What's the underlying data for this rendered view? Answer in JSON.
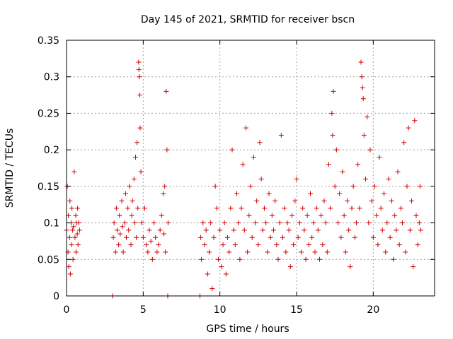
{
  "chart_data": {
    "type": "scatter",
    "title": "Day 145 of 2021, SRMTID for receiver bscn",
    "xlabel": "GPS time / hours",
    "ylabel": "SRMTID / TECUs",
    "xlim": [
      0,
      24
    ],
    "ylim": [
      0,
      0.35
    ],
    "xticks": [
      0,
      5,
      10,
      15,
      20
    ],
    "xtick_labels": [
      "0",
      "5",
      "10",
      "15",
      "20"
    ],
    "yticks": [
      0,
      0.05,
      0.1,
      0.15,
      0.2,
      0.25,
      0.3,
      0.35
    ],
    "ytick_labels": [
      "0",
      "0.05",
      "0.1",
      "0.15",
      "0.2",
      "0.25",
      "0.3",
      "0.35"
    ],
    "grid": true,
    "marker": "+",
    "color": "#d00000",
    "series": [
      {
        "name": "SRMTID",
        "points": [
          [
            0.0,
            0.09
          ],
          [
            0.05,
            0.15
          ],
          [
            0.1,
            0.06
          ],
          [
            0.12,
            0.11
          ],
          [
            0.15,
            0.04
          ],
          [
            0.2,
            0.08
          ],
          [
            0.22,
            0.13
          ],
          [
            0.25,
            0.03
          ],
          [
            0.3,
            0.1
          ],
          [
            0.32,
            0.07
          ],
          [
            0.35,
            0.12
          ],
          [
            0.4,
            0.09
          ],
          [
            0.42,
            0.05
          ],
          [
            0.45,
            0.095
          ],
          [
            0.5,
            0.17
          ],
          [
            0.55,
            0.08
          ],
          [
            0.6,
            0.11
          ],
          [
            0.62,
            0.06
          ],
          [
            0.65,
            0.1
          ],
          [
            0.7,
            0.085
          ],
          [
            0.72,
            0.12
          ],
          [
            0.75,
            0.07
          ],
          [
            0.8,
            0.1
          ],
          [
            0.85,
            0.09
          ],
          [
            3.0,
            0.0
          ],
          [
            3.05,
            0.08
          ],
          [
            3.1,
            0.1
          ],
          [
            3.2,
            0.06
          ],
          [
            3.25,
            0.12
          ],
          [
            3.3,
            0.09
          ],
          [
            3.4,
            0.07
          ],
          [
            3.45,
            0.11
          ],
          [
            3.5,
            0.085
          ],
          [
            3.6,
            0.13
          ],
          [
            3.65,
            0.095
          ],
          [
            3.7,
            0.06
          ],
          [
            3.8,
            0.1
          ],
          [
            3.85,
            0.14
          ],
          [
            3.9,
            0.08
          ],
          [
            4.0,
            0.12
          ],
          [
            4.05,
            0.09
          ],
          [
            4.1,
            0.15
          ],
          [
            4.2,
            0.07
          ],
          [
            4.25,
            0.11
          ],
          [
            4.3,
            0.13
          ],
          [
            4.4,
            0.16
          ],
          [
            4.45,
            0.1
          ],
          [
            4.5,
            0.19
          ],
          [
            4.55,
            0.08
          ],
          [
            4.6,
            0.21
          ],
          [
            4.65,
            0.12
          ],
          [
            4.7,
            0.32
          ],
          [
            4.72,
            0.31
          ],
          [
            4.75,
            0.3
          ],
          [
            4.78,
            0.275
          ],
          [
            4.8,
            0.23
          ],
          [
            4.85,
            0.17
          ],
          [
            4.9,
            0.1
          ],
          [
            5.0,
            0.08
          ],
          [
            5.1,
            0.12
          ],
          [
            5.2,
            0.07
          ],
          [
            5.3,
            0.06
          ],
          [
            5.4,
            0.09
          ],
          [
            5.5,
            0.075
          ],
          [
            5.6,
            0.05
          ],
          [
            5.7,
            0.1
          ],
          [
            5.8,
            0.08
          ],
          [
            5.9,
            0.06
          ],
          [
            6.0,
            0.07
          ],
          [
            6.1,
            0.09
          ],
          [
            6.2,
            0.11
          ],
          [
            6.3,
            0.14
          ],
          [
            6.35,
            0.085
          ],
          [
            6.4,
            0.15
          ],
          [
            6.45,
            0.06
          ],
          [
            6.5,
            0.28
          ],
          [
            6.55,
            0.2
          ],
          [
            6.6,
            0.0
          ],
          [
            6.62,
            0.1
          ],
          [
            8.7,
            0.0
          ],
          [
            8.75,
            0.08
          ],
          [
            8.8,
            0.05
          ],
          [
            8.9,
            0.1
          ],
          [
            9.0,
            0.07
          ],
          [
            9.1,
            0.09
          ],
          [
            9.2,
            0.03
          ],
          [
            9.3,
            0.06
          ],
          [
            9.4,
            0.1
          ],
          [
            9.5,
            0.01
          ],
          [
            9.6,
            0.08
          ],
          [
            9.7,
            0.15
          ],
          [
            9.8,
            0.12
          ],
          [
            9.9,
            0.05
          ],
          [
            10.0,
            0.09
          ],
          [
            10.1,
            0.04
          ],
          [
            10.2,
            0.07
          ],
          [
            10.3,
            0.1
          ],
          [
            10.4,
            0.03
          ],
          [
            10.5,
            0.08
          ],
          [
            10.6,
            0.06
          ],
          [
            10.7,
            0.12
          ],
          [
            10.8,
            0.2
          ],
          [
            10.9,
            0.09
          ],
          [
            11.0,
            0.07
          ],
          [
            11.1,
            0.14
          ],
          [
            11.2,
            0.1
          ],
          [
            11.3,
            0.05
          ],
          [
            11.4,
            0.12
          ],
          [
            11.5,
            0.18
          ],
          [
            11.6,
            0.09
          ],
          [
            11.7,
            0.23
          ],
          [
            11.8,
            0.06
          ],
          [
            11.9,
            0.11
          ],
          [
            12.0,
            0.15
          ],
          [
            12.1,
            0.08
          ],
          [
            12.2,
            0.19
          ],
          [
            12.3,
            0.1
          ],
          [
            12.4,
            0.13
          ],
          [
            12.5,
            0.07
          ],
          [
            12.6,
            0.21
          ],
          [
            12.7,
            0.16
          ],
          [
            12.8,
            0.09
          ],
          [
            12.9,
            0.12
          ],
          [
            13.0,
            0.1
          ],
          [
            13.1,
            0.06
          ],
          [
            13.2,
            0.14
          ],
          [
            13.3,
            0.08
          ],
          [
            13.4,
            0.11
          ],
          [
            13.5,
            0.09
          ],
          [
            13.6,
            0.13
          ],
          [
            13.7,
            0.07
          ],
          [
            13.8,
            0.05
          ],
          [
            13.9,
            0.1
          ],
          [
            14.0,
            0.22
          ],
          [
            14.1,
            0.08
          ],
          [
            14.2,
            0.12
          ],
          [
            14.3,
            0.06
          ],
          [
            14.4,
            0.1
          ],
          [
            14.5,
            0.09
          ],
          [
            14.6,
            0.04
          ],
          [
            14.7,
            0.11
          ],
          [
            14.8,
            0.07
          ],
          [
            14.9,
            0.13
          ],
          [
            15.0,
            0.16
          ],
          [
            15.1,
            0.08
          ],
          [
            15.2,
            0.1
          ],
          [
            15.3,
            0.06
          ],
          [
            15.4,
            0.12
          ],
          [
            15.5,
            0.09
          ],
          [
            15.6,
            0.05
          ],
          [
            15.7,
            0.11
          ],
          [
            15.8,
            0.07
          ],
          [
            15.9,
            0.14
          ],
          [
            16.0,
            0.08
          ],
          [
            16.1,
            0.1
          ],
          [
            16.2,
            0.06
          ],
          [
            16.3,
            0.12
          ],
          [
            16.4,
            0.09
          ],
          [
            16.5,
            0.05
          ],
          [
            16.6,
            0.11
          ],
          [
            16.7,
            0.07
          ],
          [
            16.8,
            0.13
          ],
          [
            16.9,
            0.1
          ],
          [
            17.0,
            0.06
          ],
          [
            17.1,
            0.18
          ],
          [
            17.2,
            0.12
          ],
          [
            17.3,
            0.25
          ],
          [
            17.35,
            0.22
          ],
          [
            17.4,
            0.28
          ],
          [
            17.5,
            0.15
          ],
          [
            17.6,
            0.2
          ],
          [
            17.7,
            0.1
          ],
          [
            17.8,
            0.14
          ],
          [
            17.9,
            0.08
          ],
          [
            18.0,
            0.17
          ],
          [
            18.1,
            0.11
          ],
          [
            18.2,
            0.06
          ],
          [
            18.3,
            0.13
          ],
          [
            18.4,
            0.09
          ],
          [
            18.5,
            0.04
          ],
          [
            18.6,
            0.12
          ],
          [
            18.7,
            0.15
          ],
          [
            18.8,
            0.08
          ],
          [
            18.9,
            0.1
          ],
          [
            19.0,
            0.18
          ],
          [
            19.1,
            0.12
          ],
          [
            19.2,
            0.32
          ],
          [
            19.25,
            0.3
          ],
          [
            19.3,
            0.285
          ],
          [
            19.35,
            0.27
          ],
          [
            19.4,
            0.22
          ],
          [
            19.5,
            0.16
          ],
          [
            19.6,
            0.245
          ],
          [
            19.7,
            0.1
          ],
          [
            19.8,
            0.2
          ],
          [
            19.9,
            0.13
          ],
          [
            20.0,
            0.08
          ],
          [
            20.1,
            0.15
          ],
          [
            20.2,
            0.11
          ],
          [
            20.3,
            0.07
          ],
          [
            20.4,
            0.19
          ],
          [
            20.5,
            0.12
          ],
          [
            20.6,
            0.09
          ],
          [
            20.7,
            0.14
          ],
          [
            20.8,
            0.06
          ],
          [
            20.9,
            0.1
          ],
          [
            21.0,
            0.16
          ],
          [
            21.1,
            0.08
          ],
          [
            21.2,
            0.13
          ],
          [
            21.3,
            0.05
          ],
          [
            21.4,
            0.11
          ],
          [
            21.5,
            0.09
          ],
          [
            21.6,
            0.17
          ],
          [
            21.7,
            0.07
          ],
          [
            21.8,
            0.12
          ],
          [
            21.9,
            0.1
          ],
          [
            22.0,
            0.21
          ],
          [
            22.1,
            0.06
          ],
          [
            22.2,
            0.15
          ],
          [
            22.3,
            0.23
          ],
          [
            22.4,
            0.09
          ],
          [
            22.5,
            0.13
          ],
          [
            22.6,
            0.04
          ],
          [
            22.7,
            0.24
          ],
          [
            22.8,
            0.11
          ],
          [
            22.9,
            0.07
          ],
          [
            23.0,
            0.1
          ],
          [
            23.05,
            0.15
          ],
          [
            23.1,
            0.09
          ]
        ]
      }
    ]
  }
}
